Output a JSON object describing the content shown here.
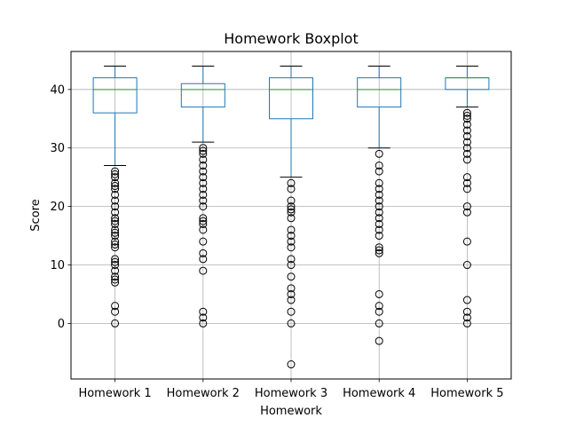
{
  "chart_data": {
    "type": "boxplot",
    "title": "Homework Boxplot",
    "xlabel": "Homework",
    "ylabel": "Score",
    "ylim": [
      -9.5,
      46.5
    ],
    "yticks": [
      0,
      10,
      20,
      30,
      40
    ],
    "grid": true,
    "colors": {
      "box": "#1f77b4",
      "median": "#2ca02c",
      "whisker": "#000000",
      "flier": "#000000",
      "grid": "#b0b0b0"
    },
    "categories": [
      "Homework 1",
      "Homework 2",
      "Homework 3",
      "Homework 4",
      "Homework 5"
    ],
    "boxes": [
      {
        "name": "Homework 1",
        "whislo": 27,
        "q1": 36,
        "med": 40,
        "q3": 42,
        "whishi": 44,
        "fliers": [
          26,
          25.5,
          25,
          24,
          23.5,
          23,
          22,
          21,
          20,
          19,
          18,
          17.5,
          17,
          16,
          15.5,
          15,
          14,
          13.5,
          13,
          11,
          10.5,
          10,
          9,
          8,
          7.5,
          7,
          3,
          2,
          0
        ]
      },
      {
        "name": "Homework 2",
        "whislo": 31,
        "q1": 37,
        "med": 40,
        "q3": 41,
        "whishi": 44,
        "fliers": [
          30,
          29.5,
          29,
          28,
          27,
          26,
          25,
          24,
          23,
          22,
          21,
          20,
          18,
          17.5,
          17,
          16,
          14,
          12,
          11,
          9,
          2,
          1,
          0
        ]
      },
      {
        "name": "Homework 3",
        "whislo": 25,
        "q1": 35,
        "med": 40,
        "q3": 42,
        "whishi": 44,
        "fliers": [
          24,
          23,
          21,
          20,
          19.5,
          19,
          18,
          16,
          15,
          14,
          13,
          11,
          10,
          8,
          6,
          5,
          4,
          2,
          0,
          -7
        ]
      },
      {
        "name": "Homework 4",
        "whislo": 30,
        "q1": 37,
        "med": 40,
        "q3": 42,
        "whishi": 44,
        "fliers": [
          29,
          27,
          26,
          24,
          23,
          22,
          21,
          20,
          19,
          18,
          17,
          16,
          15,
          13,
          12.5,
          12,
          5,
          3,
          2,
          0,
          -3
        ]
      },
      {
        "name": "Homework 5",
        "whislo": 37,
        "q1": 40,
        "med": 42,
        "q3": 42,
        "whishi": 44,
        "fliers": [
          36,
          35.5,
          35,
          34,
          33,
          32,
          31,
          30,
          29,
          28,
          25,
          24,
          23,
          20,
          19,
          14,
          10,
          4,
          2,
          1,
          0
        ]
      }
    ]
  }
}
